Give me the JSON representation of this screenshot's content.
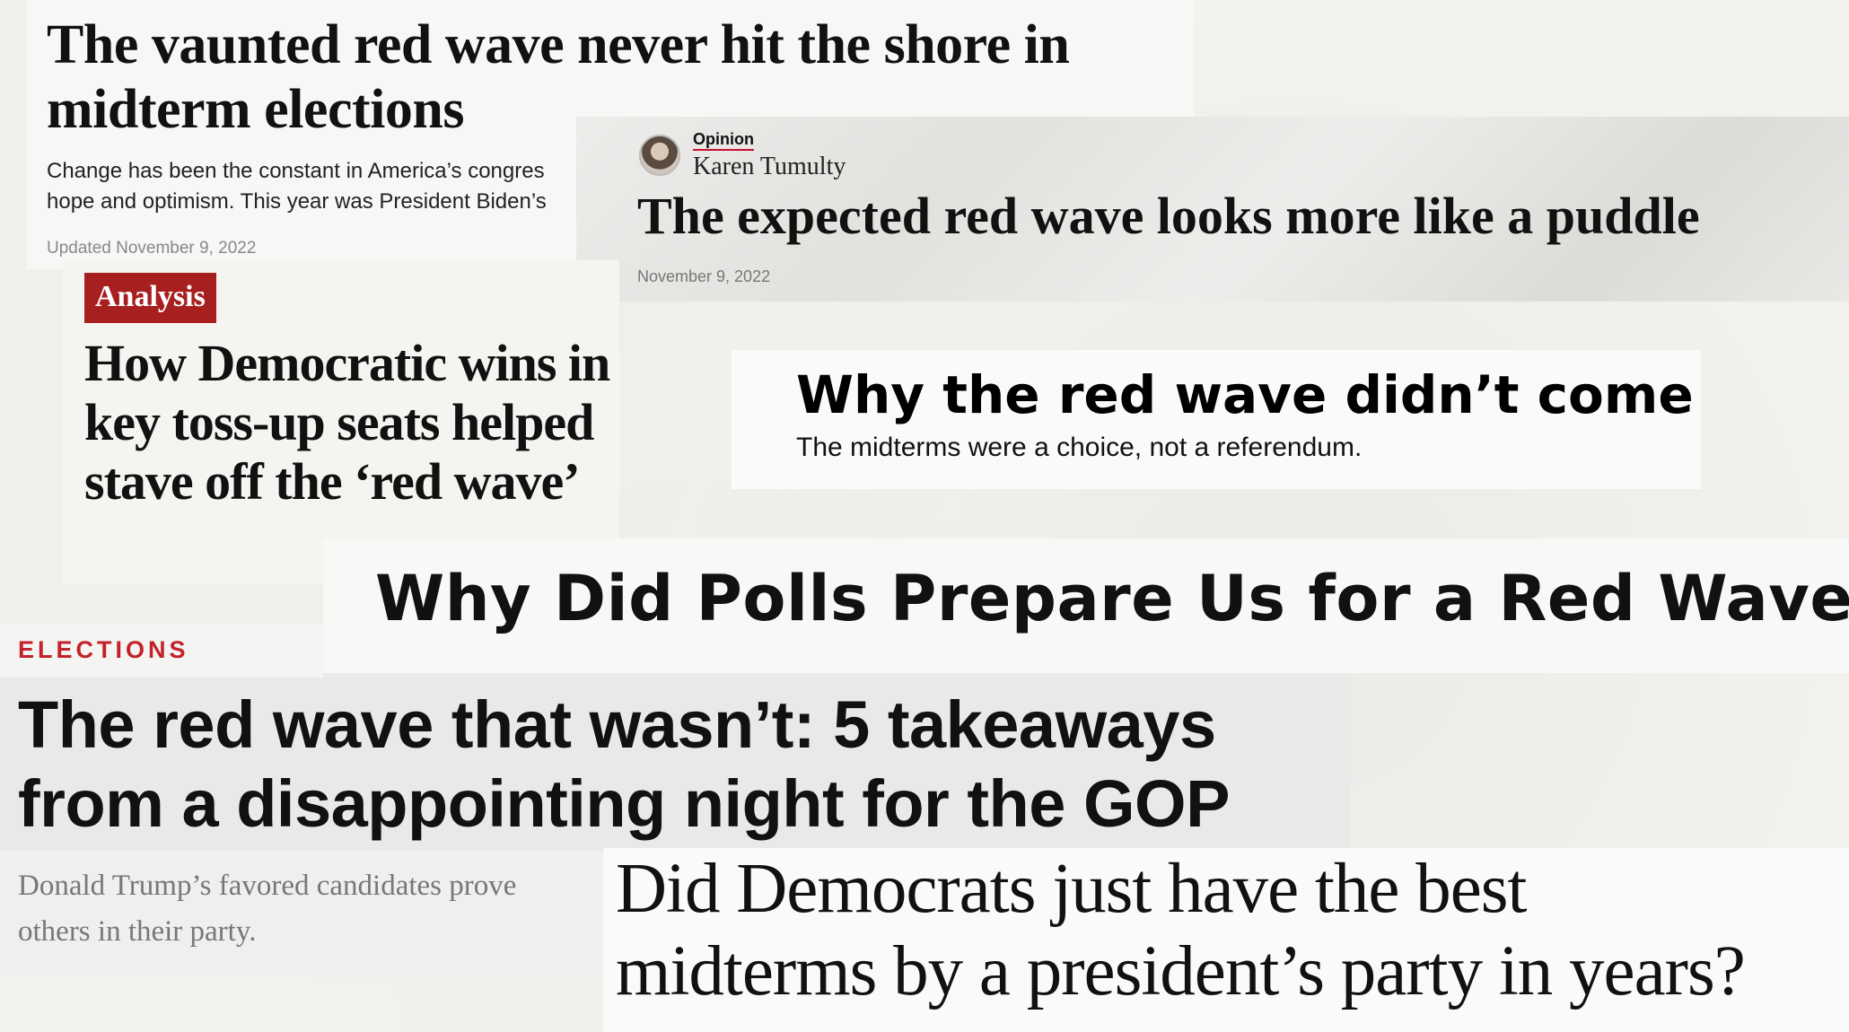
{
  "clips": {
    "wapo": {
      "headline": "The vaunted red wave never hit the shore in midterm elections",
      "dek_line1": "Change has been the constant in America’s congres",
      "dek_line2": "hope and optimism. This year was President Biden’s",
      "date": "Updated November 9, 2022"
    },
    "opinion": {
      "label": "Opinion",
      "author": "Karen Tumulty",
      "headline": "The expected red wave looks more like a puddle",
      "date": "November 9, 2022"
    },
    "analysis": {
      "tag": "Analysis",
      "headline": "How Democratic wins in key toss-up seats helped stave off the ‘red wave’"
    },
    "vox": {
      "headline": "Why the red wave didn’t come",
      "dek": "The midterms were a choice, not a referendum."
    },
    "polls": {
      "headline": "Why Did Polls Prepare Us for a Red Wave?"
    },
    "npr": {
      "kicker": "ELECTIONS"
    },
    "politico": {
      "headline": "The red wave that wasn’t: 5 takeaways from a disappointing night for the GOP"
    },
    "trump_dek": {
      "line1": "Donald Trump’s favored candidates prove",
      "line2": "others in their party."
    },
    "guardian": {
      "line1": "Did Democrats just have the best",
      "line2": "midterms by a president’s party in years?"
    }
  },
  "colors": {
    "analysis_tag": "#a81f1f",
    "npr_kicker": "#c3222a",
    "opinion_underline": "#c8102e"
  }
}
